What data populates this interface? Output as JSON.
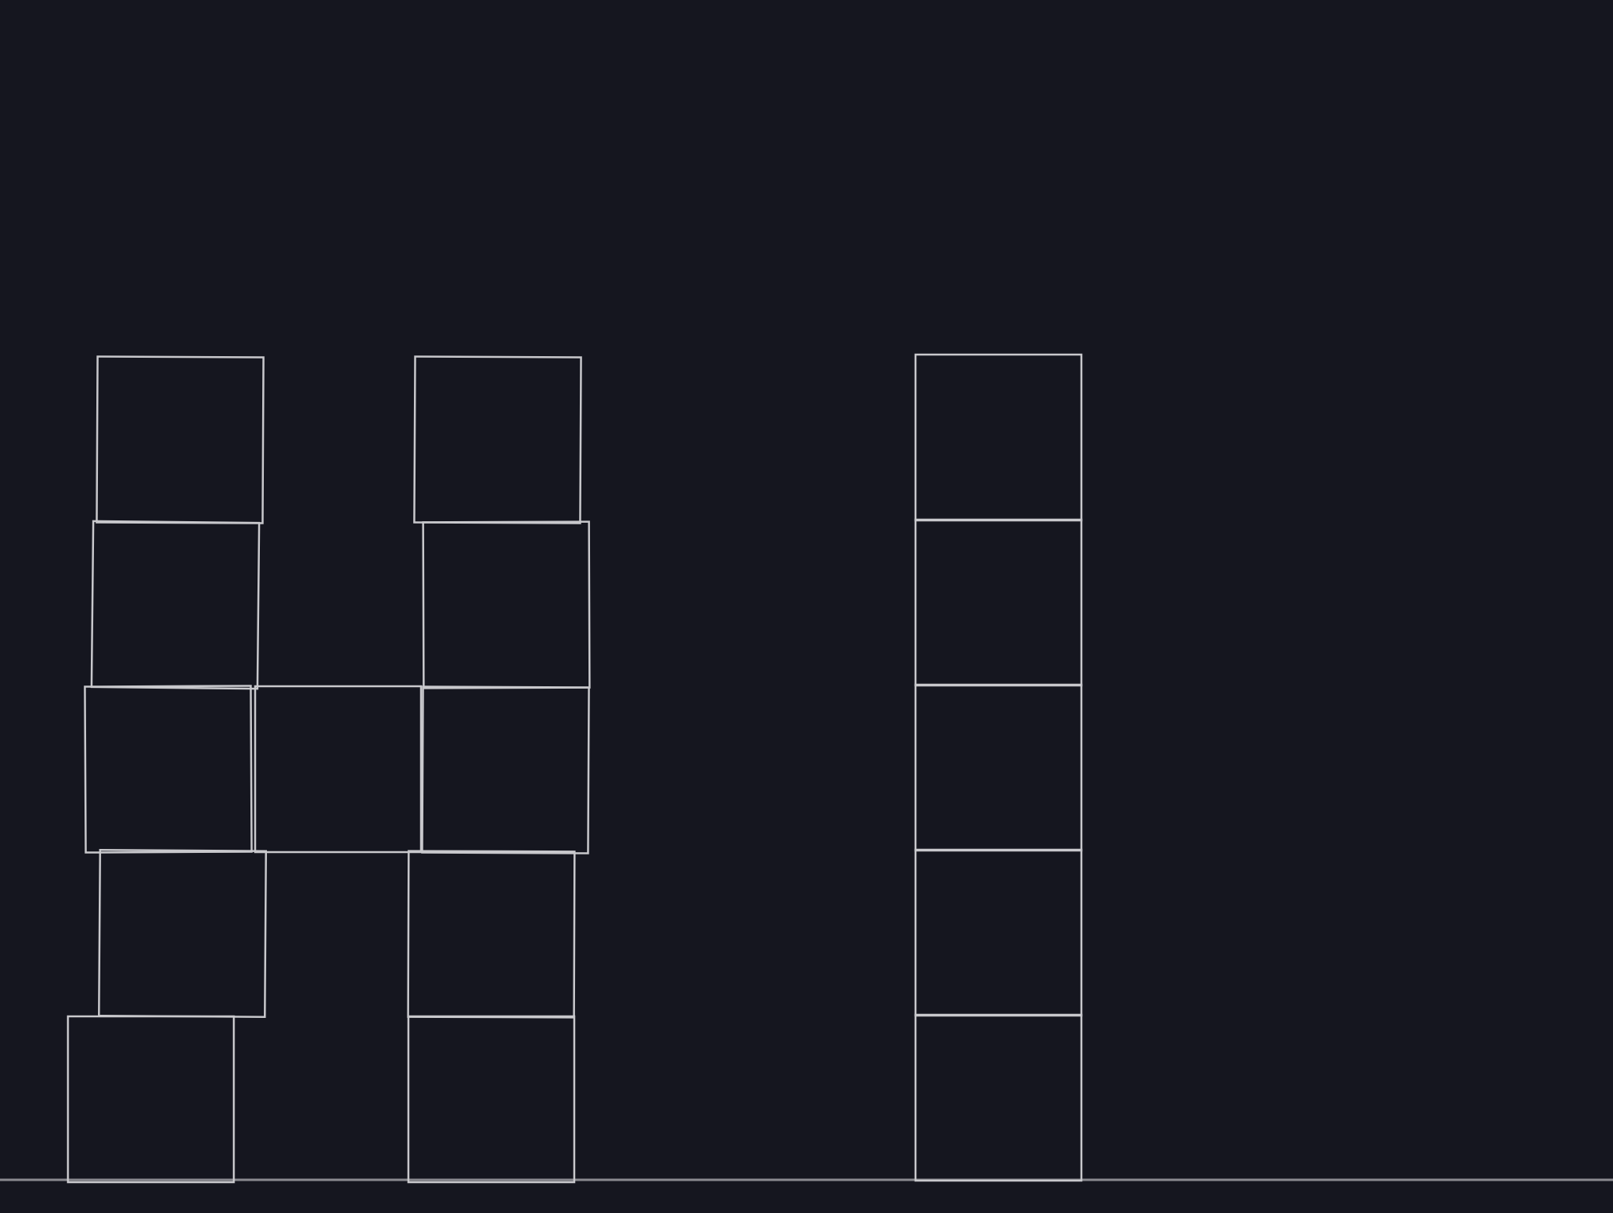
{
  "colors": {
    "background": "#15161f",
    "block_stroke": "#c8c8cc",
    "ground_line": "#8a8a90"
  },
  "tower_1": {
    "block_count": 5
  },
  "tower_2": {
    "block_count": 5
  },
  "tower_3": {
    "block_count": 5
  },
  "bridge": {
    "block_count": 1
  }
}
